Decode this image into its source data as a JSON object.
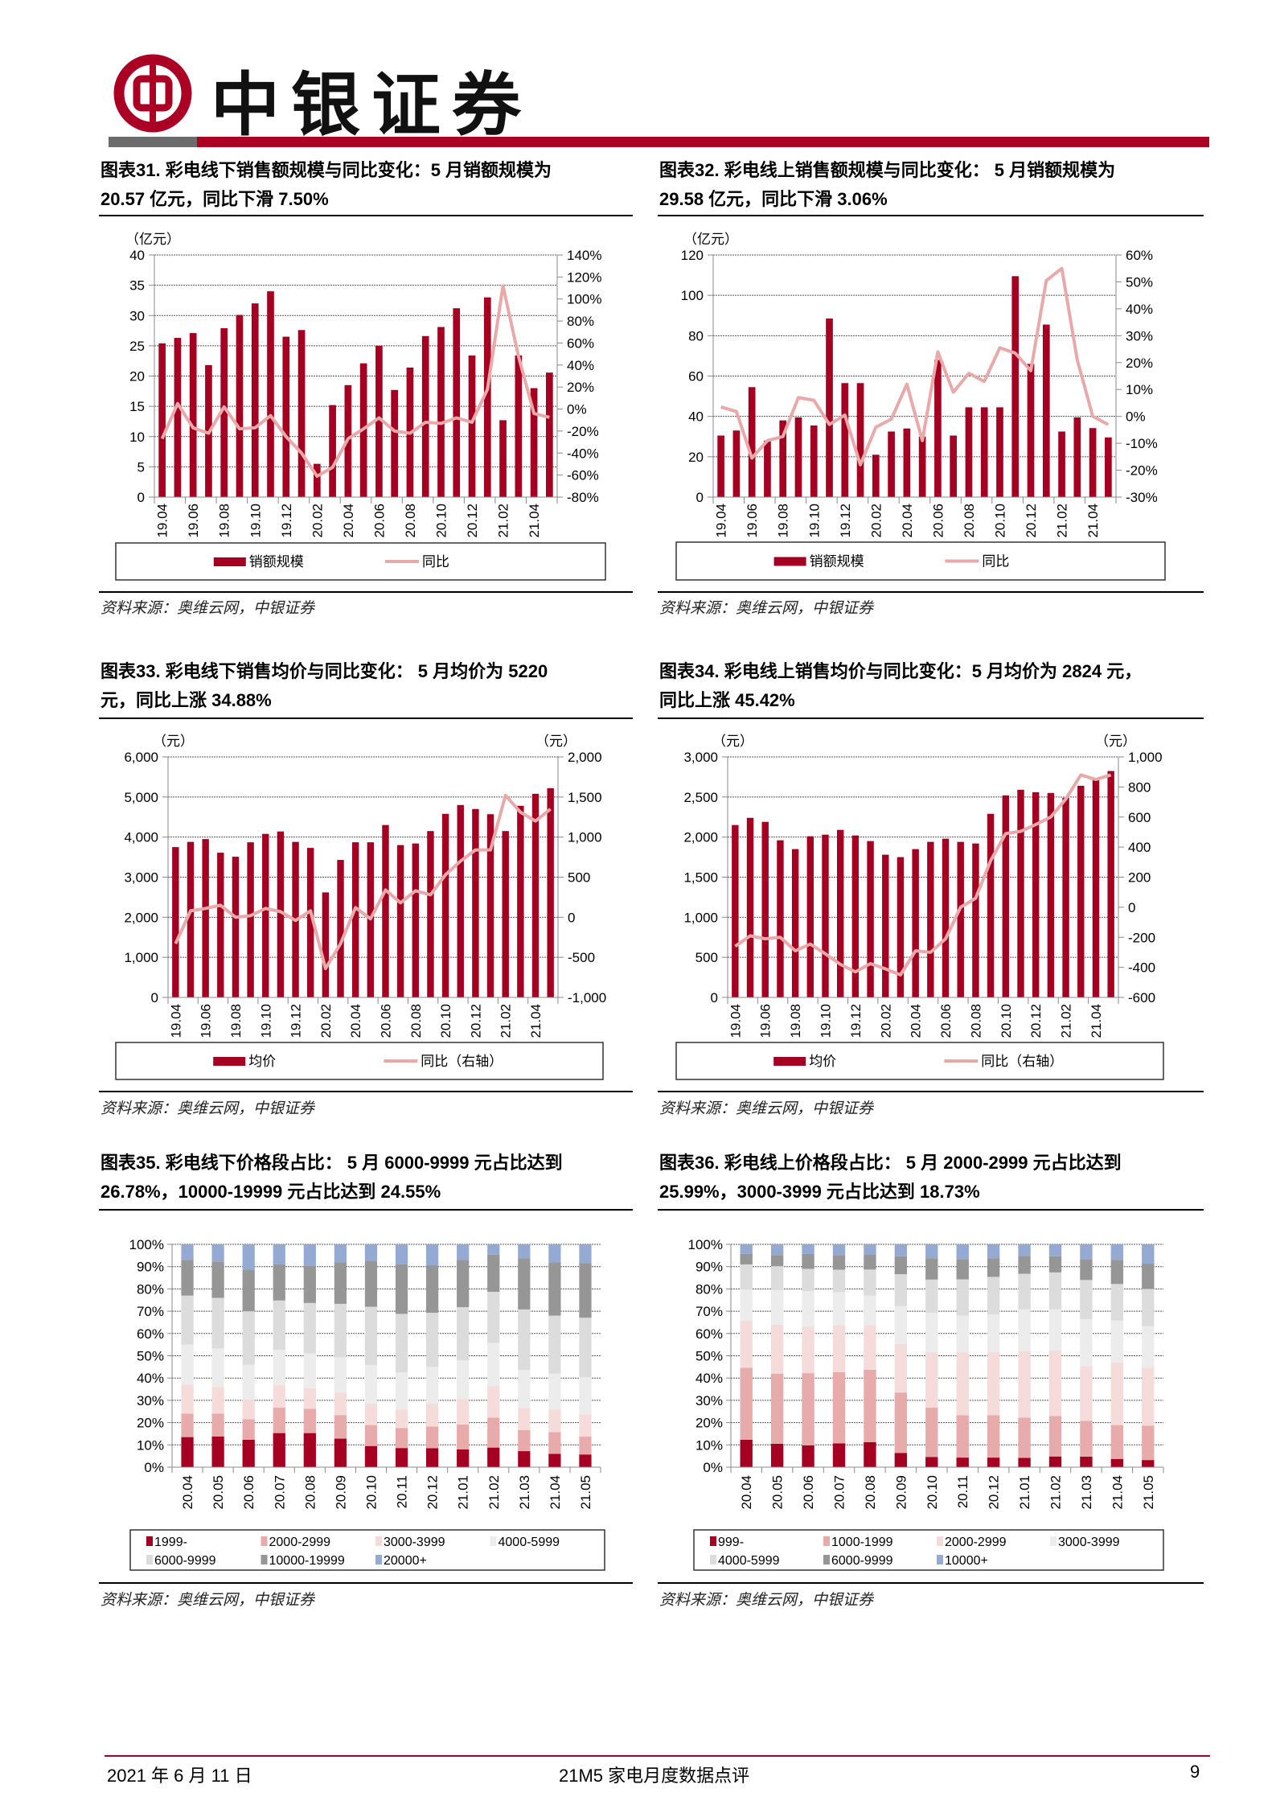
{
  "header": {
    "brand": "中银证券",
    "brand_color": "#ab0023"
  },
  "panels": [
    {
      "title_line1": "图表31. 彩电线下销售额规模与同比变化：5 月销额规模为",
      "title_line2": "20.57 亿元，同比下滑 7.50%",
      "source": "资料来源：奥维云网，中银证券"
    },
    {
      "title_line1": "图表32. 彩电线上销售额规模与同比变化： 5 月销额规模为",
      "title_line2": "29.58 亿元，同比下滑 3.06%",
      "source": "资料来源：奥维云网，中银证券"
    },
    {
      "title_line1": "图表33. 彩电线下销售均价与同比变化： 5 月均价为 5220",
      "title_line2": "元，同比上涨 34.88%",
      "source": "资料来源：奥维云网，中银证券"
    },
    {
      "title_line1": "图表34. 彩电线上销售均价与同比变化：5 月均价为 2824 元，",
      "title_line2": "同比上涨 45.42%",
      "source": "资料来源：奥维云网，中银证券"
    },
    {
      "title_line1": "图表35. 彩电线下价格段占比： 5 月 6000-9999 元占比达到",
      "title_line2": "26.78%，10000-19999 元占比达到 24.55%",
      "source": "资料来源：奥维云网，中银证券"
    },
    {
      "title_line1": "图表36. 彩电线上价格段占比： 5 月 2000-2999 元占比达到",
      "title_line2": "25.99%，3000-3999 元占比达到 18.73%",
      "source": "资料来源：奥维云网，中银证券"
    }
  ],
  "footer": {
    "date": "2021 年 6 月 11 日",
    "report": "21M5 家电月度数据点评",
    "page": "9"
  },
  "colors": {
    "bar": "#a50021",
    "line": "#eaa9a9"
  },
  "chart_data": [
    {
      "type": "bar+line",
      "left_unit": "（亿元）",
      "categories": [
        "19.04",
        "19.05",
        "19.06",
        "19.07",
        "19.08",
        "19.09",
        "19.10",
        "19.11",
        "19.12",
        "20.01",
        "20.02",
        "20.03",
        "20.04",
        "20.05",
        "20.06",
        "20.07",
        "20.08",
        "20.09",
        "20.10",
        "20.11",
        "20.12",
        "21.01",
        "21.02",
        "21.03",
        "21.04",
        "21.05"
      ],
      "y_left": {
        "range": [
          0,
          40
        ],
        "ticks": [
          0,
          5,
          10,
          15,
          20,
          25,
          30,
          35,
          40
        ],
        "tick_labels": [
          "0",
          "5",
          "10",
          "15",
          "20",
          "25",
          "30",
          "35",
          "40"
        ]
      },
      "y_right": {
        "range": [
          -80,
          140
        ],
        "ticks": [
          -80,
          -60,
          -40,
          -20,
          0,
          20,
          40,
          60,
          80,
          100,
          120,
          140
        ],
        "tick_labels": [
          "-80%",
          "-60%",
          "-40%",
          "-20%",
          "0%",
          "20%",
          "40%",
          "60%",
          "80%",
          "100%",
          "120%",
          "140%"
        ]
      },
      "series": [
        {
          "name": "销额规模",
          "type": "bar",
          "axis": "left",
          "values": [
            25.4,
            26.3,
            27.1,
            21.8,
            27.9,
            30.1,
            32.0,
            34.0,
            26.5,
            27.6,
            5.5,
            15.2,
            18.5,
            22.1,
            25.0,
            17.7,
            21.4,
            26.6,
            28.1,
            31.2,
            23.4,
            33.0,
            12.7,
            23.4,
            18.0,
            20.57
          ]
        },
        {
          "name": "同比",
          "type": "line",
          "axis": "right",
          "values": [
            -27,
            5,
            -17,
            -22,
            2,
            -18,
            -17,
            -6,
            -25,
            -40,
            -61,
            -53,
            -27,
            -18,
            -8,
            -20,
            -22,
            -12,
            -13,
            -8,
            -12,
            18,
            112,
            48,
            -4,
            -7.5
          ]
        }
      ],
      "grid": true,
      "legend": "bottom"
    },
    {
      "type": "bar+line",
      "left_unit": "（亿元）",
      "categories": [
        "19.04",
        "19.05",
        "19.06",
        "19.07",
        "19.08",
        "19.09",
        "19.10",
        "19.11",
        "19.12",
        "20.01",
        "20.02",
        "20.03",
        "20.04",
        "20.05",
        "20.06",
        "20.07",
        "20.08",
        "20.09",
        "20.10",
        "20.11",
        "20.12",
        "21.01",
        "21.02",
        "21.03",
        "21.04",
        "21.05"
      ],
      "y_left": {
        "range": [
          0,
          120
        ],
        "ticks": [
          0,
          20,
          40,
          60,
          80,
          100,
          120
        ],
        "tick_labels": [
          "0",
          "20",
          "40",
          "60",
          "80",
          "100",
          "120"
        ]
      },
      "y_right": {
        "range": [
          -30,
          60
        ],
        "ticks": [
          -30,
          -20,
          -10,
          0,
          10,
          20,
          30,
          40,
          50,
          60
        ],
        "tick_labels": [
          "-30%",
          "-20%",
          "-10%",
          "0%",
          "10%",
          "20%",
          "30%",
          "40%",
          "50%",
          "60%"
        ]
      },
      "series": [
        {
          "name": "销额规模",
          "type": "bar",
          "axis": "left",
          "values": [
            30.5,
            33.0,
            54.5,
            28.0,
            38.0,
            39.5,
            35.5,
            88.5,
            56.5,
            56.5,
            21.0,
            32.5,
            34.0,
            30.0,
            68.0,
            30.5,
            44.5,
            44.5,
            44.5,
            109.5,
            66.0,
            85.5,
            32.5,
            39.5,
            34.2,
            29.58
          ]
        },
        {
          "name": "同比",
          "type": "line",
          "axis": "right",
          "values": [
            3.5,
            1.8,
            -15.5,
            -9,
            -7.5,
            7,
            6,
            -3,
            0.5,
            -18,
            -4,
            -1,
            12,
            -9,
            24,
            9,
            16,
            13,
            25.5,
            23.5,
            17,
            50.5,
            55,
            21,
            0,
            -3.06
          ]
        }
      ],
      "grid": true,
      "legend": "bottom"
    },
    {
      "type": "bar+line",
      "left_unit": "（元）",
      "right_unit": "（元）",
      "categories": [
        "19.04",
        "19.05",
        "19.06",
        "19.07",
        "19.08",
        "19.09",
        "19.10",
        "19.11",
        "19.12",
        "20.01",
        "20.02",
        "20.03",
        "20.04",
        "20.05",
        "20.06",
        "20.07",
        "20.08",
        "20.09",
        "20.10",
        "20.11",
        "20.12",
        "21.01",
        "21.02",
        "21.03",
        "21.04",
        "21.05"
      ],
      "y_left": {
        "range": [
          0,
          6000
        ],
        "ticks": [
          0,
          1000,
          2000,
          3000,
          4000,
          5000,
          6000
        ],
        "tick_labels": [
          "0",
          "1,000",
          "2,000",
          "3,000",
          "4,000",
          "5,000",
          "6,000"
        ]
      },
      "y_right": {
        "range": [
          -1000,
          2000
        ],
        "ticks": [
          -1000,
          -500,
          0,
          500,
          1000,
          1500,
          2000
        ],
        "tick_labels": [
          "-1,000",
          "-500",
          "0",
          "500",
          "1,000",
          "1,500",
          "2,000"
        ]
      },
      "series": [
        {
          "name": "均价",
          "type": "bar",
          "axis": "left",
          "values": [
            3750,
            3880,
            3950,
            3610,
            3510,
            3870,
            4080,
            4140,
            3880,
            3730,
            2620,
            3430,
            3870,
            3870,
            4300,
            3800,
            3840,
            4150,
            4580,
            4800,
            4700,
            4570,
            4150,
            4780,
            5080,
            5220
          ]
        },
        {
          "name": "同比（右轴）",
          "type": "line",
          "axis": "right",
          "values": [
            -330,
            80,
            110,
            150,
            0,
            20,
            110,
            70,
            -40,
            80,
            -640,
            -330,
            120,
            -20,
            340,
            180,
            330,
            280,
            530,
            700,
            840,
            840,
            1520,
            1310,
            1200,
            1350
          ]
        }
      ],
      "grid": true,
      "legend": "bottom"
    },
    {
      "type": "bar+line",
      "left_unit": "（元）",
      "right_unit": "（元）",
      "categories": [
        "19.04",
        "19.05",
        "19.06",
        "19.07",
        "19.08",
        "19.09",
        "19.10",
        "19.11",
        "19.12",
        "20.01",
        "20.02",
        "20.03",
        "20.04",
        "20.05",
        "20.06",
        "20.07",
        "20.08",
        "20.09",
        "20.10",
        "20.11",
        "20.12",
        "21.01",
        "21.02",
        "21.03",
        "21.04",
        "21.05"
      ],
      "y_left": {
        "range": [
          0,
          3000
        ],
        "ticks": [
          0,
          500,
          1000,
          1500,
          2000,
          2500,
          3000
        ],
        "tick_labels": [
          "0",
          "500",
          "1,000",
          "1,500",
          "2,000",
          "2,500",
          "3,000"
        ]
      },
      "y_right": {
        "range": [
          -600,
          1000
        ],
        "ticks": [
          -600,
          -400,
          -200,
          0,
          200,
          400,
          600,
          800,
          1000
        ],
        "tick_labels": [
          "-600",
          "-400",
          "-200",
          "0",
          "200",
          "400",
          "600",
          "800",
          "1,000"
        ]
      },
      "series": [
        {
          "name": "均价",
          "type": "bar",
          "axis": "left",
          "values": [
            2150,
            2240,
            2190,
            1960,
            1850,
            2010,
            2030,
            2090,
            2020,
            1950,
            1780,
            1750,
            1850,
            1940,
            1980,
            1940,
            1920,
            2290,
            2520,
            2590,
            2560,
            2550,
            2490,
            2640,
            2730,
            2824
          ]
        },
        {
          "name": "同比（右轴）",
          "type": "line",
          "axis": "right",
          "values": [
            -260,
            -190,
            -210,
            -200,
            -290,
            -245,
            -310,
            -380,
            -430,
            -375,
            -410,
            -450,
            -290,
            -300,
            -210,
            0,
            60,
            310,
            490,
            505,
            550,
            600,
            720,
            880,
            850,
            880
          ]
        }
      ],
      "grid": true,
      "legend": "bottom"
    },
    {
      "type": "stacked-bar-100",
      "categories": [
        "20.04",
        "20.05",
        "20.06",
        "20.07",
        "20.08",
        "20.09",
        "20.10",
        "20.11",
        "20.12",
        "21.01",
        "21.02",
        "21.03",
        "21.04",
        "21.05"
      ],
      "y": {
        "range": [
          0,
          100
        ],
        "ticks": [
          0,
          10,
          20,
          30,
          40,
          50,
          60,
          70,
          80,
          90,
          100
        ],
        "tick_labels": [
          "0%",
          "10%",
          "20%",
          "30%",
          "40%",
          "50%",
          "60%",
          "70%",
          "80%",
          "90%",
          "100%"
        ]
      },
      "series": [
        {
          "name": "1999-",
          "color": "#a50021",
          "values": [
            13.5,
            13.8,
            12.3,
            15.3,
            15.3,
            12.8,
            9.5,
            8.6,
            8.5,
            8.0,
            8.8,
            7.2,
            6.0,
            5.7
          ]
        },
        {
          "name": "2000-2999",
          "color": "#e8abab",
          "values": [
            10.5,
            10.2,
            9.2,
            11.4,
            10.9,
            10.6,
            9.4,
            9.0,
            9.8,
            11.2,
            13.4,
            9.5,
            9.7,
            8.0
          ]
        },
        {
          "name": "3000-3999",
          "color": "#f6dbdb",
          "values": [
            13.0,
            12.0,
            8.8,
            10.1,
            9.2,
            10.0,
            9.6,
            8.3,
            10.2,
            11.4,
            14.2,
            9.9,
            10.1,
            10.0
          ]
        },
        {
          "name": "4000-5999",
          "color": "#ececec",
          "values": [
            18.0,
            17.3,
            15.7,
            15.9,
            15.6,
            15.9,
            17.3,
            16.7,
            16.5,
            17.4,
            19.4,
            17.0,
            16.2,
            16.6
          ]
        },
        {
          "name": "6000-9999",
          "color": "#dcdcdc",
          "values": [
            22.0,
            22.7,
            24.0,
            22.1,
            22.7,
            24.0,
            26.2,
            26.2,
            24.3,
            23.8,
            22.9,
            27.2,
            26.0,
            26.78
          ]
        },
        {
          "name": "10000-19999",
          "color": "#969696",
          "values": [
            16.0,
            16.3,
            18.6,
            16.2,
            16.7,
            18.7,
            20.7,
            22.2,
            21.3,
            21.2,
            16.7,
            23.0,
            24.0,
            24.55
          ]
        },
        {
          "name": "20000+",
          "color": "#95aad2",
          "values": [
            7.0,
            7.7,
            11.4,
            9.0,
            9.6,
            8.0,
            7.3,
            9.0,
            9.4,
            7.0,
            4.6,
            6.2,
            8.0,
            8.37
          ]
        }
      ],
      "grid": true,
      "legend": "bottom"
    },
    {
      "type": "stacked-bar-100",
      "categories": [
        "20.04",
        "20.05",
        "20.06",
        "20.07",
        "20.08",
        "20.09",
        "20.10",
        "20.11",
        "20.12",
        "21.01",
        "21.02",
        "21.03",
        "21.04",
        "21.05"
      ],
      "y": {
        "range": [
          0,
          100
        ],
        "ticks": [
          0,
          10,
          20,
          30,
          40,
          50,
          60,
          70,
          80,
          90,
          100
        ],
        "tick_labels": [
          "0%",
          "10%",
          "20%",
          "30%",
          "40%",
          "50%",
          "60%",
          "70%",
          "80%",
          "90%",
          "100%"
        ]
      },
      "series": [
        {
          "name": "999-",
          "color": "#a50021",
          "values": [
            12.3,
            10.5,
            9.8,
            10.7,
            11.2,
            6.4,
            4.6,
            4.3,
            4.3,
            4.2,
            4.8,
            4.7,
            3.7,
            3.2
          ]
        },
        {
          "name": "1000-1999",
          "color": "#e8abab",
          "values": [
            32.3,
            31.5,
            32.4,
            31.9,
            32.5,
            27.1,
            22.1,
            19.0,
            19.0,
            18.0,
            18.2,
            16.1,
            15.2,
            15.4
          ]
        },
        {
          "name": "2000-2999",
          "color": "#f6dbdb",
          "values": [
            21.1,
            22.0,
            20.8,
            21.1,
            20.0,
            21.8,
            24.9,
            28.3,
            28.3,
            29.8,
            29.4,
            24.6,
            28.0,
            25.99
          ]
        },
        {
          "name": "3000-3999",
          "color": "#ececec",
          "values": [
            14.1,
            15.5,
            16.0,
            14.8,
            13.3,
            17.0,
            17.7,
            16.4,
            17.0,
            18.8,
            18.4,
            21.0,
            18.9,
            18.73
          ]
        },
        {
          "name": "4000-5999",
          "color": "#dcdcdc",
          "values": [
            11.2,
            10.7,
            10.0,
            10.1,
            11.7,
            14.3,
            14.9,
            16.3,
            16.8,
            16.0,
            16.6,
            17.6,
            16.4,
            16.7
          ]
        },
        {
          "name": "6000-9999",
          "color": "#969696",
          "values": [
            4.8,
            5.0,
            6.7,
            6.6,
            6.6,
            8.1,
            9.6,
            9.1,
            8.4,
            8.0,
            7.3,
            9.4,
            10.8,
            11.3
          ]
        },
        {
          "name": "10000+",
          "color": "#95aad2",
          "values": [
            4.2,
            4.8,
            4.3,
            4.8,
            4.7,
            5.3,
            6.2,
            6.6,
            6.2,
            5.2,
            5.3,
            6.6,
            7.0,
            8.7
          ]
        }
      ],
      "grid": true,
      "legend": "bottom"
    }
  ]
}
